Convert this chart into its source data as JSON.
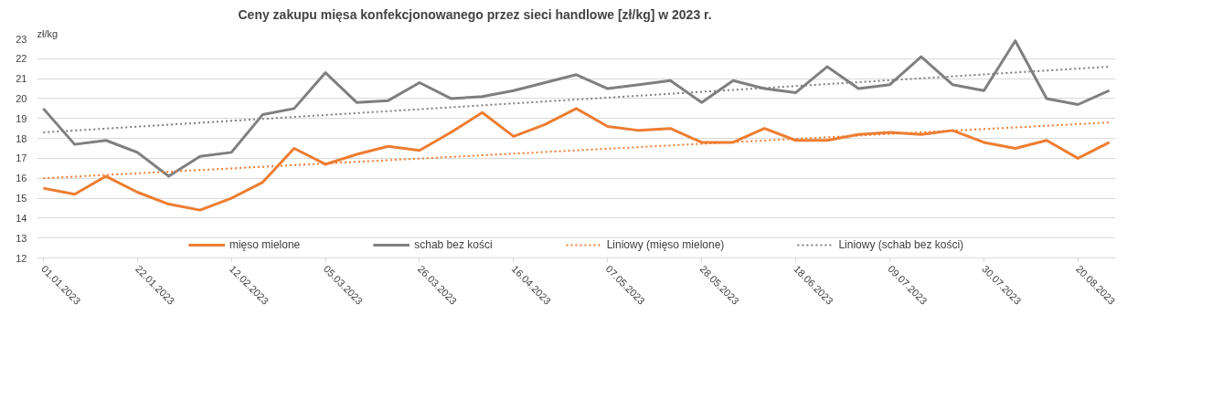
{
  "chart_data": {
    "type": "line",
    "title": "Ceny zakupu mięsa konfekcjonowanego  przez sieci handlowe [zł/kg] w 2023 r.",
    "ylabel": "zł/kg",
    "categories": [
      "01.01.2023",
      null,
      null,
      "22.01.2023",
      null,
      null,
      "12.02.2023",
      null,
      null,
      "05.03.2023",
      null,
      null,
      "26.03.2023",
      null,
      null,
      "16.04.2023",
      null,
      null,
      "07.05.2023",
      null,
      null,
      "28.05.2023",
      null,
      null,
      "18.06.2023",
      null,
      null,
      "09.07.2023",
      null,
      null,
      "30.07.2023",
      null,
      null,
      "20.08.2023",
      null
    ],
    "series": [
      {
        "name": "mięso mielone",
        "color": "#ed7d31",
        "line_style": "solid",
        "values": [
          15.5,
          15.2,
          16.1,
          15.3,
          14.7,
          14.4,
          15.0,
          15.8,
          17.5,
          16.7,
          17.2,
          17.6,
          17.4,
          18.3,
          19.3,
          18.1,
          18.7,
          19.5,
          18.6,
          18.4,
          18.5,
          17.8,
          17.8,
          18.5,
          17.9,
          17.9,
          18.2,
          18.3,
          18.2,
          18.4,
          17.8,
          17.5,
          17.9,
          17.0,
          17.8
        ]
      },
      {
        "name": "schab bez kości",
        "color": "#7f7f7f",
        "line_style": "solid",
        "values": [
          19.5,
          17.7,
          17.9,
          17.3,
          16.1,
          17.1,
          17.3,
          19.2,
          19.5,
          21.3,
          19.8,
          19.9,
          20.8,
          20.0,
          20.1,
          20.4,
          20.8,
          21.2,
          20.5,
          20.7,
          20.9,
          19.8,
          20.9,
          20.5,
          20.3,
          21.6,
          20.5,
          20.7,
          22.1,
          20.7,
          20.4,
          22.9,
          20.0,
          19.7,
          20.4
        ]
      },
      {
        "name": "Liniowy (mięso mielone)",
        "color": "#ed7d31",
        "line_style": "dotted",
        "values": [
          16.0,
          null,
          null,
          null,
          null,
          null,
          null,
          null,
          null,
          null,
          null,
          null,
          null,
          null,
          null,
          null,
          null,
          null,
          null,
          null,
          null,
          null,
          null,
          null,
          null,
          null,
          null,
          null,
          null,
          null,
          null,
          null,
          null,
          null,
          18.8
        ]
      },
      {
        "name": "Liniowy (schab bez kości)",
        "color": "#7f7f7f",
        "line_style": "dotted",
        "values": [
          18.3,
          null,
          null,
          null,
          null,
          null,
          null,
          null,
          null,
          null,
          null,
          null,
          null,
          null,
          null,
          null,
          null,
          null,
          null,
          null,
          null,
          null,
          null,
          null,
          null,
          null,
          null,
          null,
          null,
          null,
          null,
          null,
          null,
          null,
          21.6
        ]
      }
    ],
    "ylim": [
      12,
      23
    ],
    "yticks": [
      12,
      13,
      14,
      15,
      16,
      17,
      18,
      19,
      20,
      21,
      22,
      23
    ],
    "grid": "y",
    "legend": "bottom",
    "marker": "none"
  }
}
